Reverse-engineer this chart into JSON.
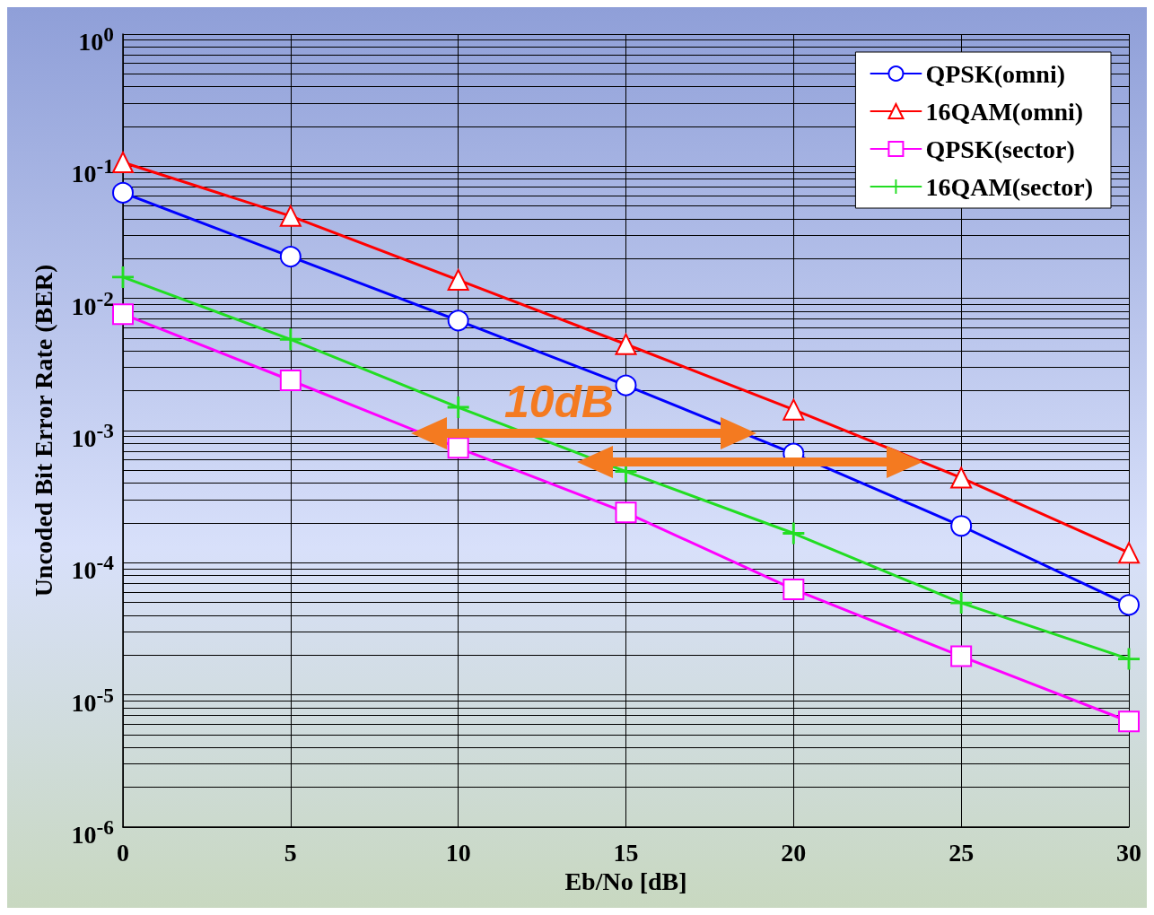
{
  "chart_data": {
    "type": "line",
    "xlabel": "Eb/No [dB]",
    "ylabel": "Uncoded Bit Error Rate (BER)",
    "log": "y",
    "grid": true,
    "legend": "top right",
    "line_style": "solid",
    "x": [
      0,
      5,
      10,
      15,
      20,
      25,
      30
    ],
    "xlim": [
      0,
      30
    ],
    "xticks": [
      0,
      5,
      10,
      15,
      20,
      25,
      30
    ],
    "ylim": [
      1e-06,
      1
    ],
    "yticks": [
      {
        "value": 1e-06,
        "label": "10$^{-6}$"
      },
      {
        "value": 2e-06,
        "label": null
      },
      {
        "value": 3e-06,
        "label": null
      },
      {
        "value": 4e-06,
        "label": null
      },
      {
        "value": 5e-06,
        "label": null
      },
      {
        "value": 6e-06,
        "label": null
      },
      {
        "value": 7e-06,
        "label": null
      },
      {
        "value": 8e-06,
        "label": null
      },
      {
        "value": 9e-06,
        "label": null
      },
      {
        "value": 1e-05,
        "label": "10$^{-5}$"
      },
      {
        "value": 2e-05,
        "label": null
      },
      {
        "value": 3e-05,
        "label": null
      },
      {
        "value": 4e-05,
        "label": null
      },
      {
        "value": 5e-05,
        "label": null
      },
      {
        "value": 6e-05,
        "label": null
      },
      {
        "value": 7e-05,
        "label": null
      },
      {
        "value": 8e-05,
        "label": null
      },
      {
        "value": 9e-05,
        "label": null
      },
      {
        "value": 0.0001,
        "label": "10$^{-4}$"
      },
      {
        "value": 0.0002,
        "label": null
      },
      {
        "value": 0.0003,
        "label": null
      },
      {
        "value": 0.0004,
        "label": null
      },
      {
        "value": 0.0005,
        "label": null
      },
      {
        "value": 0.0006,
        "label": null
      },
      {
        "value": 0.0007,
        "label": null
      },
      {
        "value": 0.0008,
        "label": null
      },
      {
        "value": 0.0009,
        "label": null
      },
      {
        "value": 0.001,
        "label": "10$^{-3}$"
      },
      {
        "value": 0.002,
        "label": null
      },
      {
        "value": 0.003,
        "label": null
      },
      {
        "value": 0.004,
        "label": null
      },
      {
        "value": 0.005,
        "label": null
      },
      {
        "value": 0.006,
        "label": null
      },
      {
        "value": 0.007,
        "label": null
      },
      {
        "value": 0.008,
        "label": null
      },
      {
        "value": 0.009,
        "label": null
      },
      {
        "value": 0.01,
        "label": "10$^{-2}$"
      },
      {
        "value": 0.02,
        "label": null
      },
      {
        "value": 0.03,
        "label": null
      },
      {
        "value": 0.04,
        "label": null
      },
      {
        "value": 0.05,
        "label": null
      },
      {
        "value": 0.06,
        "label": null
      },
      {
        "value": 0.07,
        "label": null
      },
      {
        "value": 0.08,
        "label": null
      },
      {
        "value": 0.09,
        "label": null
      },
      {
        "value": 0.1,
        "label": "10$^{-1}$"
      },
      {
        "value": 0.2,
        "label": null
      },
      {
        "value": 0.3,
        "label": null
      },
      {
        "value": 0.4,
        "label": null
      },
      {
        "value": 0.5,
        "label": null
      },
      {
        "value": 0.6,
        "label": null
      },
      {
        "value": 0.7,
        "label": null
      },
      {
        "value": 0.8,
        "label": null
      },
      {
        "value": 0.9,
        "label": null
      },
      {
        "value": 1,
        "label": "10$^{0}$"
      }
    ],
    "series": [
      {
        "name": "QPSK(omni)",
        "color": "#0000ff",
        "marker": "circle",
        "values": [
          0.063,
          0.0207,
          0.0068,
          0.0022,
          0.00067,
          0.00019,
          4.8e-05
        ]
      },
      {
        "name": "16QAM(omni)",
        "color": "#ff0000",
        "marker": "triangle",
        "values": [
          0.107,
          0.042,
          0.0138,
          0.0045,
          0.00144,
          0.00044,
          0.000119
        ]
      },
      {
        "name": "QPSK(sector)",
        "color": "#ff00ff",
        "marker": "square",
        "values": [
          0.0076,
          0.0024,
          0.00074,
          0.00024,
          6.3e-05,
          1.96e-05,
          6.3e-06
        ]
      },
      {
        "name": "16QAM(sector)",
        "color": "#22dd22",
        "marker": "cross",
        "values": [
          0.0145,
          0.0049,
          0.0015,
          0.00049,
          0.000167,
          4.97e-05,
          1.87e-05
        ]
      }
    ],
    "annotations": [
      "10dB"
    ]
  }
}
